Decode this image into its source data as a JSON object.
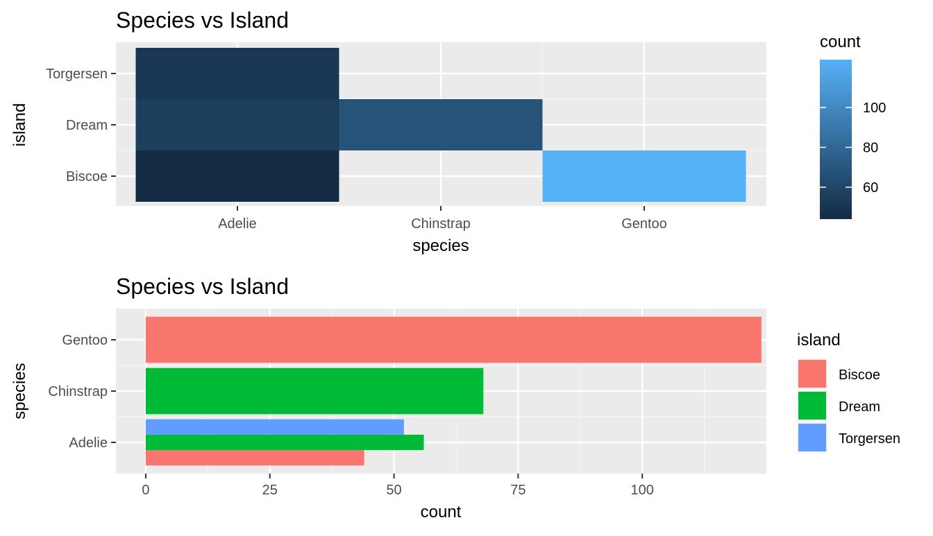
{
  "chart_data": [
    {
      "type": "heatmap",
      "title": "Species vs Island",
      "xlabel": "species",
      "ylabel": "island",
      "x_categories": [
        "Adelie",
        "Chinstrap",
        "Gentoo"
      ],
      "y_categories": [
        "Biscoe",
        "Dream",
        "Torgersen"
      ],
      "cells": [
        {
          "x": "Adelie",
          "y": "Torgersen",
          "value": 52
        },
        {
          "x": "Adelie",
          "y": "Dream",
          "value": 56
        },
        {
          "x": "Adelie",
          "y": "Biscoe",
          "value": 44
        },
        {
          "x": "Chinstrap",
          "y": "Dream",
          "value": 68
        },
        {
          "x": "Gentoo",
          "y": "Biscoe",
          "value": 124
        }
      ],
      "legend": {
        "title": "count",
        "ticks": [
          60,
          80,
          100
        ],
        "range": [
          44,
          124
        ],
        "low_color": "#132B43",
        "high_color": "#56B1F7",
        "placement": "right"
      },
      "grid": true
    },
    {
      "type": "bar",
      "orientation": "horizontal",
      "title": "Species vs Island",
      "xlabel": "count",
      "ylabel": "species",
      "categories": [
        "Adelie",
        "Chinstrap",
        "Gentoo"
      ],
      "xlim": [
        -6,
        125
      ],
      "x_ticks": [
        0,
        25,
        50,
        75,
        100
      ],
      "series": [
        {
          "name": "Biscoe",
          "color": "#F8766D",
          "values": [
            44,
            null,
            124
          ]
        },
        {
          "name": "Dream",
          "color": "#00BA38",
          "values": [
            56,
            68,
            null
          ]
        },
        {
          "name": "Torgersen",
          "color": "#619CFF",
          "values": [
            52,
            null,
            null
          ]
        }
      ],
      "legend": {
        "title": "island",
        "placement": "right"
      },
      "grid": true
    }
  ]
}
